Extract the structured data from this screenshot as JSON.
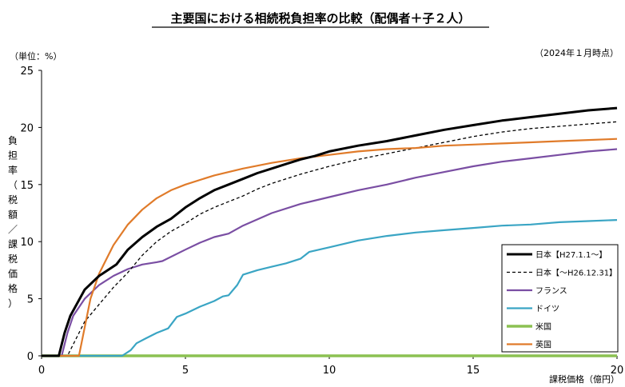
{
  "chart_data": {
    "type": "line",
    "title": "主要国における相続税負担率の比較（配偶者＋子２人）",
    "unit_note": "（単位：%）",
    "date_note": "（2024年１月時点）",
    "ylabel": "負担率（税額／課税価格）",
    "xlabel": "課税価格（億円）",
    "xlim": [
      0,
      20
    ],
    "ylim": [
      0,
      25
    ],
    "x_ticks": [
      "0",
      "5",
      "10",
      "15",
      "20"
    ],
    "y_ticks": [
      "0",
      "5",
      "10",
      "15",
      "20",
      "25"
    ],
    "grid": false,
    "legend_position": "bottom-right",
    "series": [
      {
        "name": "日本【H27.1.1～】",
        "color": "#000000",
        "dash": "solid",
        "points": [
          [
            0,
            0
          ],
          [
            0.6,
            0
          ],
          [
            0.8,
            2
          ],
          [
            1,
            3.5
          ],
          [
            1.5,
            5.8
          ],
          [
            2,
            7
          ],
          [
            2.6,
            8
          ],
          [
            3,
            9.3
          ],
          [
            3.5,
            10.4
          ],
          [
            4,
            11.3
          ],
          [
            4.5,
            12
          ],
          [
            5,
            13
          ],
          [
            5.5,
            13.8
          ],
          [
            6,
            14.5
          ],
          [
            6.5,
            15
          ],
          [
            7,
            15.5
          ],
          [
            7.5,
            16
          ],
          [
            8,
            16.4
          ],
          [
            8.5,
            16.8
          ],
          [
            9,
            17.2
          ],
          [
            9.5,
            17.5
          ],
          [
            10,
            17.9
          ],
          [
            11,
            18.4
          ],
          [
            12,
            18.8
          ],
          [
            13,
            19.3
          ],
          [
            14,
            19.8
          ],
          [
            15,
            20.2
          ],
          [
            16,
            20.6
          ],
          [
            17,
            20.9
          ],
          [
            18,
            21.2
          ],
          [
            19,
            21.5
          ],
          [
            20,
            21.7
          ]
        ]
      },
      {
        "name": "日本【～H26.12.31】",
        "color": "#000000",
        "dash": "dashed",
        "points": [
          [
            0,
            0
          ],
          [
            0.9,
            0
          ],
          [
            1.2,
            1.5
          ],
          [
            1.5,
            3
          ],
          [
            2,
            4.5
          ],
          [
            2.5,
            6
          ],
          [
            3,
            7.3
          ],
          [
            3.5,
            8.8
          ],
          [
            4,
            10
          ],
          [
            4.5,
            10.9
          ],
          [
            5,
            11.6
          ],
          [
            5.5,
            12.4
          ],
          [
            6,
            13
          ],
          [
            6.5,
            13.5
          ],
          [
            7,
            14
          ],
          [
            7.5,
            14.6
          ],
          [
            8,
            15.1
          ],
          [
            9,
            15.9
          ],
          [
            10,
            16.6
          ],
          [
            11,
            17.2
          ],
          [
            12,
            17.7
          ],
          [
            13,
            18.2
          ],
          [
            14,
            18.7
          ],
          [
            15,
            19.2
          ],
          [
            16,
            19.6
          ],
          [
            17,
            19.9
          ],
          [
            18,
            20.1
          ],
          [
            19,
            20.3
          ],
          [
            20,
            20.5
          ]
        ]
      },
      {
        "name": "フランス",
        "color": "#7a4ea3",
        "dash": "solid",
        "points": [
          [
            0,
            0
          ],
          [
            0.7,
            0
          ],
          [
            0.9,
            2
          ],
          [
            1.1,
            3.5
          ],
          [
            1.5,
            5
          ],
          [
            2,
            6.2
          ],
          [
            2.5,
            7
          ],
          [
            3,
            7.6
          ],
          [
            3.5,
            8
          ],
          [
            4,
            8.2
          ],
          [
            4.2,
            8.3
          ],
          [
            5,
            9.3
          ],
          [
            5.5,
            9.9
          ],
          [
            6,
            10.4
          ],
          [
            6.5,
            10.7
          ],
          [
            7,
            11.4
          ],
          [
            8,
            12.5
          ],
          [
            9,
            13.3
          ],
          [
            10,
            13.9
          ],
          [
            11,
            14.5
          ],
          [
            12,
            15
          ],
          [
            13,
            15.6
          ],
          [
            14,
            16.1
          ],
          [
            15,
            16.6
          ],
          [
            16,
            17
          ],
          [
            17,
            17.3
          ],
          [
            18,
            17.6
          ],
          [
            19,
            17.9
          ],
          [
            20,
            18.1
          ]
        ]
      },
      {
        "name": "ドイツ",
        "color": "#3aa5c4",
        "dash": "solid",
        "points": [
          [
            0,
            0
          ],
          [
            2.8,
            0
          ],
          [
            3.1,
            0.5
          ],
          [
            3.3,
            1.1
          ],
          [
            3.6,
            1.5
          ],
          [
            4,
            2
          ],
          [
            4.4,
            2.4
          ],
          [
            4.7,
            3.4
          ],
          [
            5,
            3.7
          ],
          [
            5.5,
            4.3
          ],
          [
            6,
            4.8
          ],
          [
            6.3,
            5.2
          ],
          [
            6.5,
            5.3
          ],
          [
            6.8,
            6.2
          ],
          [
            7,
            7.1
          ],
          [
            7.5,
            7.5
          ],
          [
            8,
            7.8
          ],
          [
            8.5,
            8.1
          ],
          [
            9,
            8.5
          ],
          [
            9.3,
            9.1
          ],
          [
            10,
            9.5
          ],
          [
            11,
            10.1
          ],
          [
            12,
            10.5
          ],
          [
            13,
            10.8
          ],
          [
            14,
            11
          ],
          [
            15,
            11.2
          ],
          [
            16,
            11.4
          ],
          [
            17,
            11.5
          ],
          [
            18,
            11.7
          ],
          [
            19,
            11.8
          ],
          [
            20,
            11.9
          ]
        ]
      },
      {
        "name": "米国",
        "color": "#8cc152",
        "dash": "solid",
        "points": [
          [
            0,
            0
          ],
          [
            20,
            0
          ]
        ]
      },
      {
        "name": "英国",
        "color": "#e07b2a",
        "dash": "solid",
        "points": [
          [
            0,
            0
          ],
          [
            1.3,
            0
          ],
          [
            1.5,
            2.5
          ],
          [
            1.7,
            5
          ],
          [
            2,
            7.2
          ],
          [
            2.5,
            9.7
          ],
          [
            3,
            11.5
          ],
          [
            3.5,
            12.8
          ],
          [
            4,
            13.8
          ],
          [
            4.5,
            14.5
          ],
          [
            5,
            15
          ],
          [
            6,
            15.8
          ],
          [
            7,
            16.4
          ],
          [
            8,
            16.9
          ],
          [
            9,
            17.3
          ],
          [
            10,
            17.6
          ],
          [
            11,
            17.9
          ],
          [
            12,
            18.1
          ],
          [
            13,
            18.2
          ],
          [
            14,
            18.4
          ],
          [
            15,
            18.5
          ],
          [
            16,
            18.6
          ],
          [
            17,
            18.7
          ],
          [
            18,
            18.8
          ],
          [
            19,
            18.9
          ],
          [
            20,
            19
          ]
        ]
      }
    ]
  }
}
